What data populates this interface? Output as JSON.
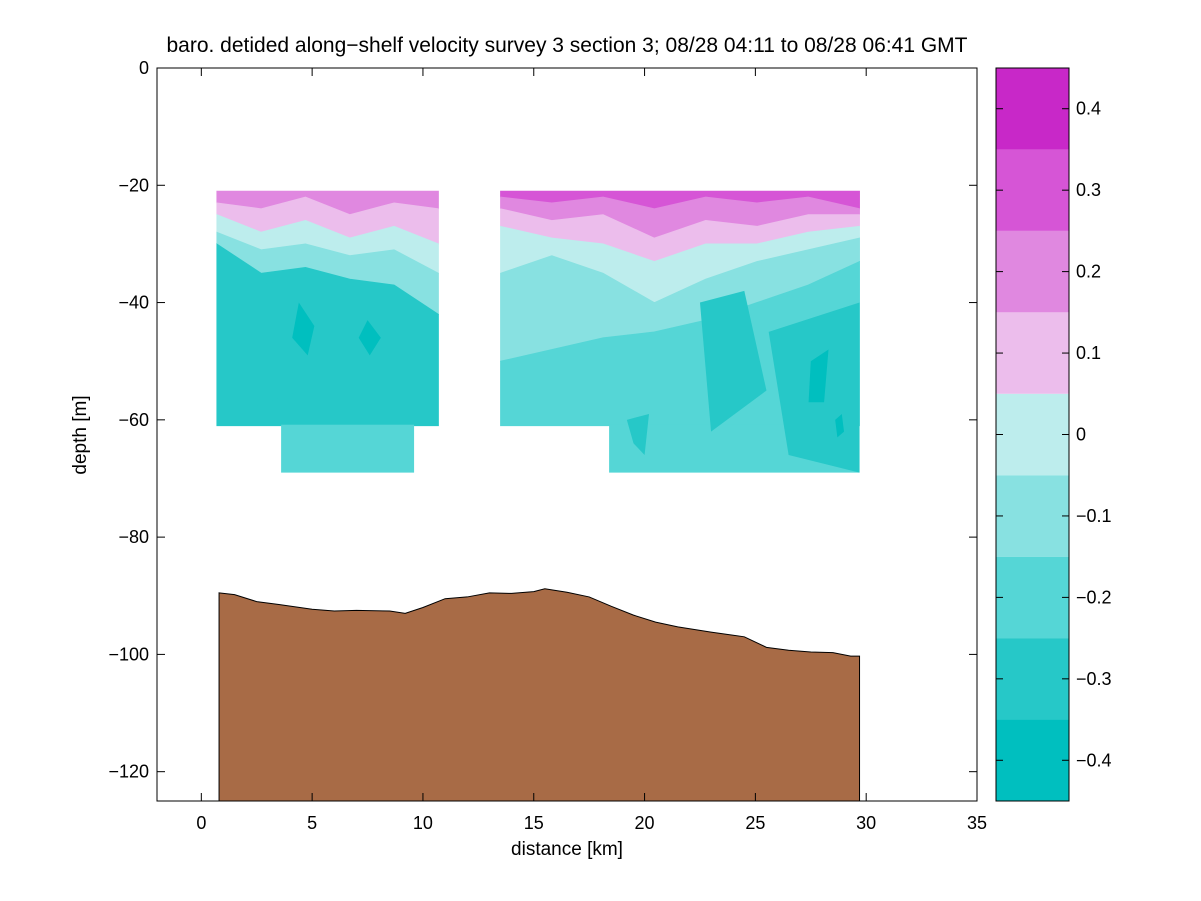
{
  "chart_data": {
    "type": "heatmap",
    "title": "baro. detided along−shelf velocity survey 3 section 3; 08/28 04:11 to 08/28 06:41 GMT",
    "xlabel": "distance [km]",
    "ylabel": "depth [m]",
    "xlim": [
      -2,
      35
    ],
    "ylim": [
      -125,
      0
    ],
    "xticks": [
      0,
      5,
      10,
      15,
      20,
      25,
      30,
      35
    ],
    "yticks": [
      0,
      -20,
      -40,
      -60,
      -80,
      -100,
      -120
    ],
    "colorbar": {
      "range": [
        -0.45,
        0.45
      ],
      "levels": [
        -0.45,
        -0.35,
        -0.25,
        -0.15,
        -0.05,
        0.05,
        0.15,
        0.25,
        0.35,
        0.45
      ],
      "colors": [
        "#00bfbf",
        "#26c8c8",
        "#55d6d6",
        "#88e1e1",
        "#bdeded",
        "#ecbdec",
        "#e088e0",
        "#d655d6",
        "#c828c8",
        "#bf00bf"
      ],
      "ticks": [
        -0.4,
        -0.3,
        -0.2,
        -0.1,
        0,
        0.1,
        0.2,
        0.3,
        0.4
      ]
    },
    "velocity_regions": [
      {
        "name": "west block",
        "bands": [
          {
            "level": 0.25,
            "x": [
              0.7,
              10.7
            ],
            "top": [
              -21,
              -21,
              -21,
              -21,
              -21,
              -21
            ],
            "bottom": [
              -23,
              -24,
              -22,
              -25,
              -23,
              -24
            ]
          },
          {
            "level": 0.15,
            "x": [
              0.7,
              10.7
            ],
            "top": [
              -23,
              -24,
              -22,
              -25,
              -23,
              -24
            ],
            "bottom": [
              -25,
              -28,
              -26,
              -29,
              -27,
              -30
            ]
          },
          {
            "level": 0.05,
            "x": [
              0.7,
              10.7
            ],
            "top": [
              -25,
              -28,
              -26,
              -29,
              -27,
              -30
            ],
            "bottom": [
              -28,
              -31,
              -30,
              -32,
              -31,
              -35
            ]
          },
          {
            "level": -0.05,
            "x": [
              0.7,
              10.7
            ],
            "top": [
              -28,
              -31,
              -30,
              -32,
              -31,
              -35
            ],
            "bottom": [
              -30,
              -35,
              -34,
              -36,
              -37,
              -42
            ]
          },
          {
            "level": -0.25,
            "x": [
              0.7,
              10.7
            ],
            "top": [
              -30,
              -35,
              -34,
              -36,
              -37,
              -42
            ],
            "bottom": [
              -61,
              -61,
              -61,
              -61,
              -61,
              -61
            ]
          }
        ]
      },
      {
        "name": "east block",
        "bands": [
          {
            "level": 0.35,
            "x": [
              13.5,
              29.7
            ],
            "top": [
              -21,
              -21,
              -21,
              -21,
              -21,
              -21,
              -21,
              -21
            ],
            "bottom": [
              -22,
              -23,
              -22,
              -24,
              -22,
              -23,
              -22,
              -24
            ]
          },
          {
            "level": 0.25,
            "x": [
              13.5,
              29.7
            ],
            "top": [
              -22,
              -23,
              -22,
              -24,
              -22,
              -23,
              -22,
              -24
            ],
            "bottom": [
              -24,
              -26,
              -25,
              -29,
              -26,
              -27,
              -25,
              -25
            ]
          },
          {
            "level": 0.15,
            "x": [
              13.5,
              29.7
            ],
            "top": [
              -24,
              -26,
              -25,
              -29,
              -26,
              -27,
              -25,
              -25
            ],
            "bottom": [
              -27,
              -29,
              -30,
              -33,
              -30,
              -30,
              -28,
              -27
            ]
          },
          {
            "level": 0.05,
            "x": [
              13.5,
              29.7
            ],
            "top": [
              -27,
              -29,
              -30,
              -33,
              -30,
              -30,
              -28,
              -27
            ],
            "bottom": [
              -35,
              -32,
              -35,
              -40,
              -36,
              -33,
              -31,
              -29
            ]
          },
          {
            "level": -0.05,
            "x": [
              13.5,
              29.7
            ],
            "top": [
              -35,
              -32,
              -35,
              -40,
              -36,
              -33,
              -31,
              -29
            ],
            "bottom": [
              -50,
              -48,
              -46,
              -45,
              -43,
              -40,
              -37,
              -33
            ]
          },
          {
            "level": -0.15,
            "x": [
              13.5,
              29.7
            ],
            "top": [
              -50,
              -48,
              -46,
              -45,
              -43,
              -40,
              -37,
              -33
            ],
            "bottom": [
              -61,
              -61,
              -61,
              -61,
              -61,
              -61,
              -61,
              -61
            ]
          }
        ]
      }
    ],
    "deep_extensions": [
      {
        "x": [
          3.6,
          9.6
        ],
        "top": -61,
        "bottom": -69,
        "level": -0.15
      },
      {
        "x": [
          18.4,
          29.7
        ],
        "top": -61,
        "bottom": -69,
        "level": -0.15
      }
    ],
    "velocity_cores": [
      {
        "level": -0.25,
        "points": [
          [
            2.5,
            -37
          ],
          [
            4.2,
            -36
          ],
          [
            4.5,
            -55
          ],
          [
            2.2,
            -58
          ]
        ]
      },
      {
        "level": -0.35,
        "points": [
          [
            4.4,
            -40
          ],
          [
            5.1,
            -44
          ],
          [
            4.8,
            -49
          ],
          [
            4.1,
            -46
          ]
        ]
      },
      {
        "level": -0.35,
        "points": [
          [
            7.5,
            -43
          ],
          [
            8.1,
            -46
          ],
          [
            7.6,
            -49
          ],
          [
            7.1,
            -46
          ]
        ]
      },
      {
        "level": -0.25,
        "points": [
          [
            22.5,
            -40
          ],
          [
            24.5,
            -38
          ],
          [
            25.5,
            -55
          ],
          [
            23,
            -62
          ]
        ]
      },
      {
        "level": -0.25,
        "points": [
          [
            25.6,
            -45
          ],
          [
            29.7,
            -40
          ],
          [
            29.7,
            -69
          ],
          [
            26.5,
            -66
          ]
        ]
      },
      {
        "level": -0.35,
        "points": [
          [
            27.5,
            -50
          ],
          [
            28.3,
            -48
          ],
          [
            28.1,
            -57
          ],
          [
            27.4,
            -57
          ]
        ]
      },
      {
        "level": -0.35,
        "points": [
          [
            28.6,
            -60
          ],
          [
            28.9,
            -59
          ],
          [
            29.0,
            -62
          ],
          [
            28.7,
            -63
          ]
        ]
      },
      {
        "level": -0.25,
        "points": [
          [
            19.2,
            -60
          ],
          [
            20.2,
            -59
          ],
          [
            20.0,
            -66
          ],
          [
            19.5,
            -64
          ]
        ]
      }
    ],
    "bathymetry": {
      "x": [
        0.8,
        1.5,
        2.5,
        3.5,
        5,
        6,
        7,
        8.5,
        9.2,
        10,
        11,
        12,
        13,
        14,
        15,
        15.5,
        16.5,
        17.5,
        18.5,
        19.5,
        20.5,
        21.5,
        23,
        24.5,
        25.5,
        26.5,
        27.5,
        28.5,
        29.3,
        29.7
      ],
      "depth": [
        -89.5,
        -89.8,
        -91,
        -91.5,
        -92.3,
        -92.6,
        -92.5,
        -92.6,
        -93,
        -92,
        -90.5,
        -90.2,
        -89.5,
        -89.6,
        -89.3,
        -88.8,
        -89.4,
        -90.2,
        -91.8,
        -93.3,
        -94.5,
        -95.3,
        -96.2,
        -97,
        -98.8,
        -99.3,
        -99.6,
        -99.7,
        -100.3,
        -100.3
      ],
      "color": "#a86b46"
    }
  }
}
